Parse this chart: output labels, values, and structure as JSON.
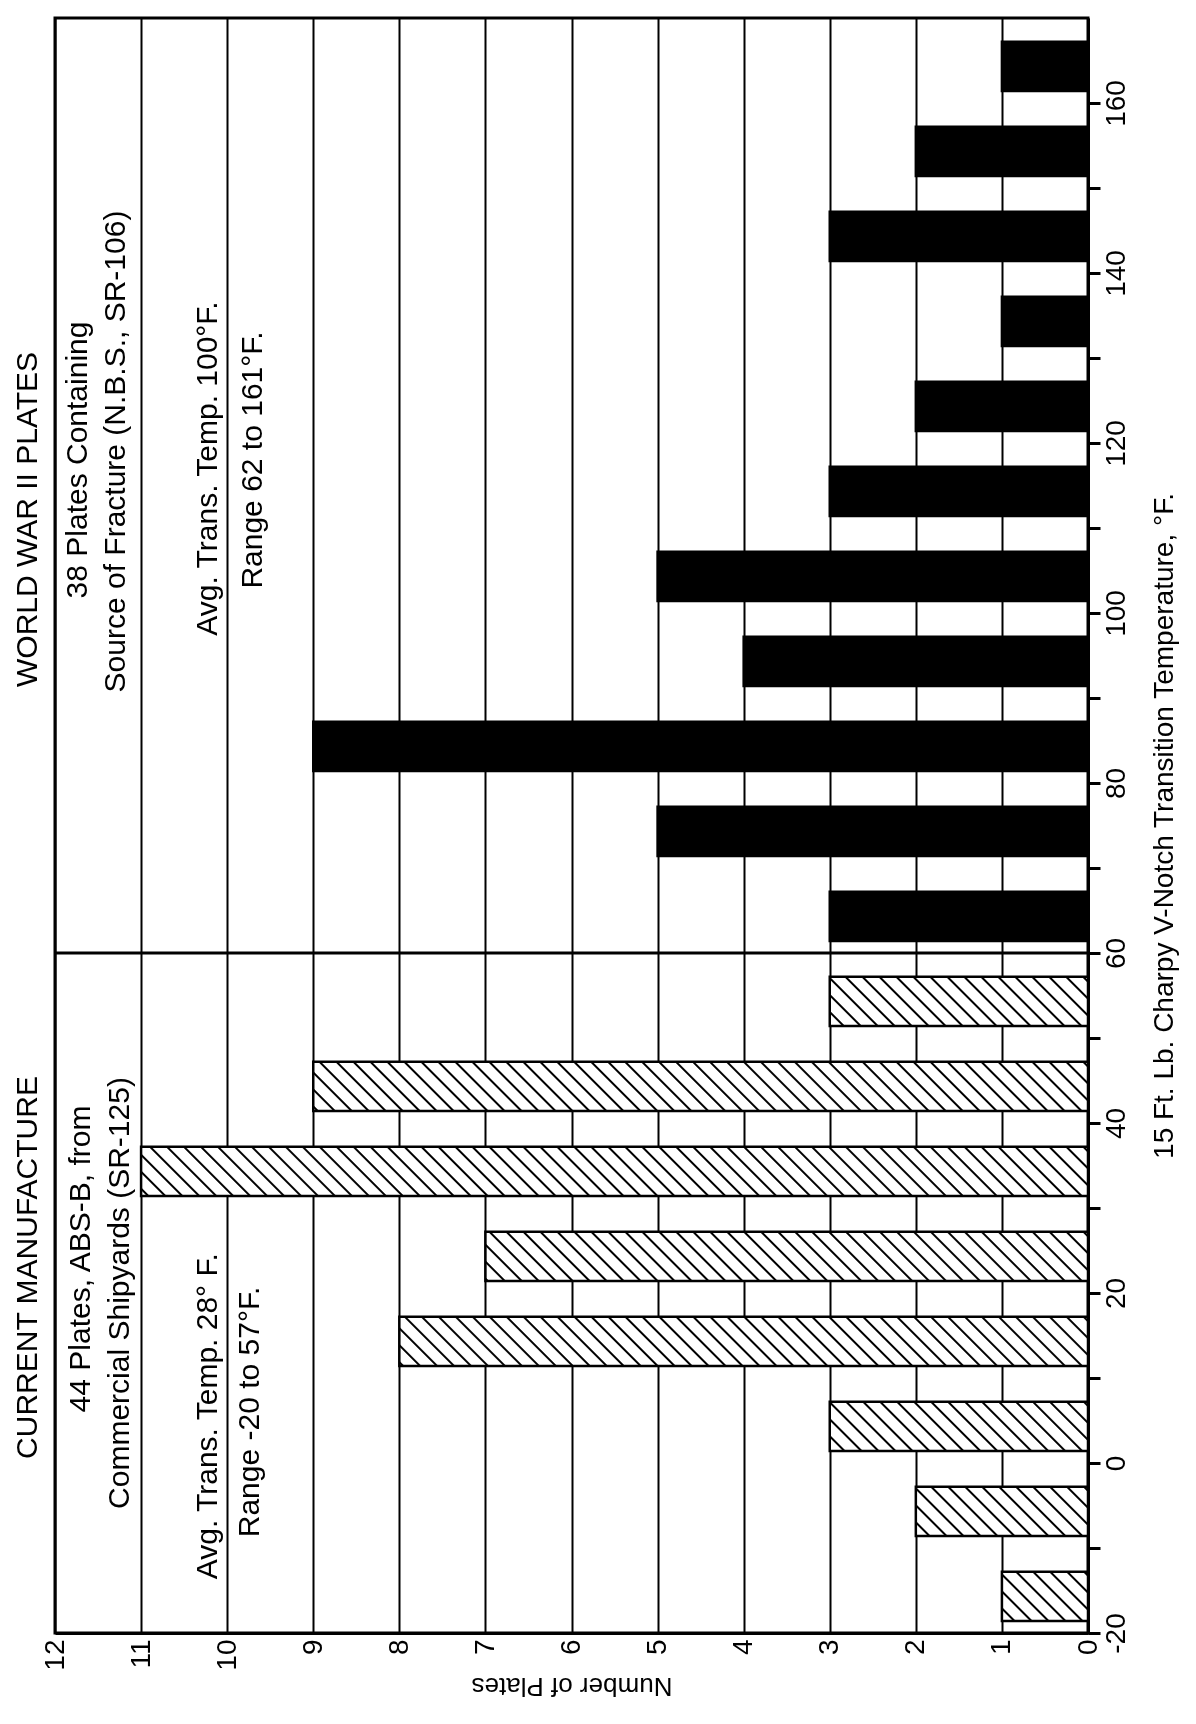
{
  "chart_data": {
    "type": "histogram",
    "orientation": "horizontal",
    "xlabel": "Number of Plates",
    "ylabel": "15 Ft. Lb. Charpy V-Notch Transition Temperature, °F.",
    "bins": [
      -20,
      -10,
      0,
      10,
      20,
      30,
      40,
      50,
      60,
      70,
      80,
      90,
      100,
      110,
      120,
      130,
      140,
      150,
      160,
      170
    ],
    "series": [
      {
        "color": "#000000",
        "values": [
          1,
          2,
          3,
          8,
          7,
          11,
          9,
          3,
          null,
          null,
          null,
          null,
          null,
          null,
          null,
          null,
          null,
          null,
          null
        ]
      },
      {
        "color": "#000000",
        "values": [
          null,
          null,
          null,
          null,
          null,
          null,
          null,
          null,
          3,
          5,
          9,
          4,
          5,
          3,
          2,
          1,
          3,
          2,
          1
        ]
      }
    ],
    "xlim": [
      12,
      0
    ],
    "xticks": [
      12,
      11,
      10,
      9,
      8,
      7,
      6,
      5,
      4,
      3,
      2,
      1,
      0
    ],
    "ylim": [
      -20,
      170
    ],
    "yticks": [
      -20,
      {
        "value": -10,
        "label": null
      },
      0,
      {
        "value": 10,
        "label": null
      },
      20,
      {
        "value": 30,
        "label": null
      },
      40,
      {
        "value": 50,
        "label": null
      },
      60,
      {
        "value": 70,
        "label": null
      },
      80,
      {
        "value": 90,
        "label": null
      },
      100,
      {
        "value": 110,
        "label": null
      },
      120,
      {
        "value": 130,
        "label": null
      },
      140,
      {
        "value": 150,
        "label": null
      },
      160
    ],
    "grid": "x",
    "ref_lines": [
      {
        "axis": "y",
        "value": 60
      }
    ],
    "annotations": [
      "CURRENT MANUFACTURE",
      "44 Plates, ABS-B, from",
      "Commercial Shipyards (SR-125)",
      "Avg. Trans. Temp. 28° F.",
      "Range -20 to 57°F.",
      "WORLD WAR II PLATES",
      "38 Plates Containing",
      "Source of Fracture (N.B.S., SR-106)",
      "Avg. Trans. Temp. 100°F.",
      "Range 62 to 161°F."
    ]
  }
}
